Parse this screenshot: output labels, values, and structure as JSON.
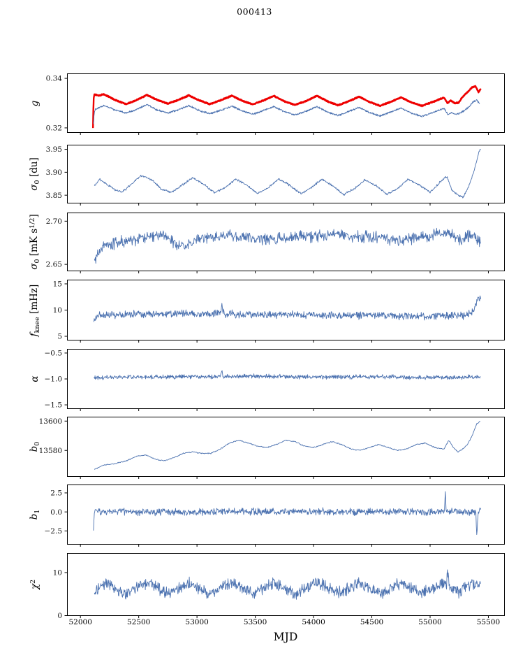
{
  "chart_data": {
    "type": "line",
    "title": "000413",
    "xlabel": "MJD",
    "xlim": [
      51885,
      55635
    ],
    "grid": false,
    "legend": "none",
    "x_ticks": {
      "values": [
        52000,
        52500,
        53000,
        53500,
        54000,
        54500,
        55000,
        55500
      ],
      "labels": [
        "52000",
        "52500",
        "53000",
        "53500",
        "54000",
        "54500",
        "55000",
        "55500"
      ]
    },
    "panels": [
      {
        "name": "g",
        "ylabel_parts": [
          [
            "i",
            "g"
          ]
        ],
        "ylim": [
          0.318,
          0.342
        ],
        "yticks": {
          "values": [
            0.32,
            0.34
          ],
          "labels": [
            "0.32",
            "0.34"
          ]
        },
        "series": [
          {
            "name": "g_thick_red",
            "color": "#ee0000",
            "width": 2.4,
            "noise": 0.00028,
            "samples": 2200,
            "x": [
              52108,
              52110,
              52114,
              52120,
              52160,
              52200,
              52300,
              52390,
              52480,
              52570,
              52660,
              52750,
              52840,
              52930,
              53020,
              53110,
              53210,
              53300,
              53390,
              53480,
              53570,
              53660,
              53750,
              53840,
              53940,
              54030,
              54120,
              54210,
              54300,
              54390,
              54480,
              54570,
              54660,
              54750,
              54840,
              54930,
              55030,
              55120,
              55150,
              55175,
              55210,
              55245,
              55280,
              55320,
              55360,
              55390,
              55415,
              55435
            ],
            "y": [
              0.32,
              0.326,
              0.332,
              0.3335,
              0.333,
              0.3336,
              0.3312,
              0.3296,
              0.3312,
              0.3333,
              0.3313,
              0.3298,
              0.3313,
              0.3331,
              0.3311,
              0.3296,
              0.3313,
              0.333,
              0.3309,
              0.3295,
              0.3311,
              0.3329,
              0.3307,
              0.3293,
              0.3309,
              0.333,
              0.3307,
              0.3291,
              0.3307,
              0.3326,
              0.3305,
              0.3289,
              0.3305,
              0.3323,
              0.3303,
              0.3289,
              0.3306,
              0.3323,
              0.3299,
              0.3311,
              0.33,
              0.3302,
              0.3326,
              0.3344,
              0.3364,
              0.3368,
              0.3345,
              0.3357
            ]
          },
          {
            "name": "g_thin_blue",
            "color": "#4c72b0",
            "width": 0.9,
            "noise": 0.00045,
            "samples": 1500,
            "x": [
              52112,
              52118,
              52126,
              52200,
              52300,
              52390,
              52480,
              52570,
              52660,
              52750,
              52840,
              52930,
              53020,
              53110,
              53210,
              53300,
              53390,
              53480,
              53570,
              53660,
              53750,
              53840,
              53940,
              54030,
              54120,
              54210,
              54300,
              54390,
              54480,
              54570,
              54660,
              54750,
              54840,
              54930,
              55030,
              55120,
              55155,
              55185,
              55215,
              55250,
              55290,
              55330,
              55370,
              55400,
              55425
            ],
            "y": [
              0.3212,
              0.3256,
              0.3274,
              0.329,
              0.3272,
              0.3261,
              0.3274,
              0.3294,
              0.3272,
              0.326,
              0.3273,
              0.329,
              0.327,
              0.3257,
              0.3272,
              0.3288,
              0.3268,
              0.3255,
              0.327,
              0.3286,
              0.3266,
              0.3252,
              0.3268,
              0.3286,
              0.3264,
              0.325,
              0.3266,
              0.3283,
              0.3262,
              0.3248,
              0.3264,
              0.328,
              0.326,
              0.3246,
              0.3263,
              0.3279,
              0.3253,
              0.3262,
              0.3255,
              0.3258,
              0.327,
              0.3284,
              0.3305,
              0.3312,
              0.3298
            ]
          }
        ]
      },
      {
        "name": "sigma0-du",
        "ylabel_parts": [
          [
            "i",
            "σ"
          ],
          [
            "sub",
            "0"
          ],
          [
            "n",
            " [du]"
          ]
        ],
        "ylim": [
          3.832,
          3.96
        ],
        "yticks": {
          "values": [
            3.85,
            3.9,
            3.95
          ],
          "labels": [
            "3.85",
            "3.90",
            "3.95"
          ]
        },
        "series": [
          {
            "name": "sigma0_du",
            "color": "#4c72b0",
            "width": 0.9,
            "noise": 0.0028,
            "samples": 900,
            "x": [
              52120,
              52165,
              52230,
              52300,
              52360,
              52430,
              52520,
              52610,
              52700,
              52780,
              52880,
              52960,
              53060,
              53150,
              53250,
              53330,
              53430,
              53520,
              53620,
              53700,
              53800,
              53890,
              53990,
              54070,
              54170,
              54260,
              54360,
              54440,
              54540,
              54630,
              54730,
              54810,
              54910,
              55000,
              55090,
              55145,
              55185,
              55235,
              55285,
              55330,
              55380,
              55420,
              55435
            ],
            "y": [
              3.87,
              3.885,
              3.873,
              3.861,
              3.857,
              3.872,
              3.893,
              3.884,
              3.862,
              3.856,
              3.873,
              3.888,
              3.874,
              3.855,
              3.868,
              3.885,
              3.872,
              3.854,
              3.868,
              3.886,
              3.871,
              3.853,
              3.868,
              3.885,
              3.87,
              3.851,
              3.866,
              3.884,
              3.87,
              3.852,
              3.866,
              3.885,
              3.872,
              3.856,
              3.88,
              3.891,
              3.861,
              3.851,
              3.846,
              3.868,
              3.905,
              3.946,
              3.951
            ]
          }
        ]
      },
      {
        "name": "sigma0-mks12",
        "ylabel_parts": [
          [
            "i",
            "σ"
          ],
          [
            "sub",
            "0"
          ],
          [
            "n",
            " [mK s"
          ],
          [
            "sup",
            "1/2"
          ],
          [
            "n",
            "]"
          ]
        ],
        "ylim": [
          2.642,
          2.71
        ],
        "yticks": {
          "values": [
            2.65,
            2.7
          ],
          "labels": [
            "2.65",
            "2.70"
          ]
        },
        "series": [
          {
            "name": "sigma0_mks",
            "color": "#4c72b0",
            "width": 0.9,
            "noise": 0.0085,
            "samples": 850,
            "x": [
              52120,
              52200,
              52400,
              52700,
              52900,
              53000,
              53300,
              53600,
              53900,
              54200,
              54500,
              54800,
              55000,
              55150,
              55250,
              55350,
              55435
            ],
            "y": [
              2.656,
              2.673,
              2.677,
              2.684,
              2.669,
              2.681,
              2.683,
              2.678,
              2.682,
              2.684,
              2.681,
              2.678,
              2.682,
              2.69,
              2.678,
              2.684,
              2.676
            ]
          }
        ]
      },
      {
        "name": "fknee",
        "ylabel_parts": [
          [
            "i",
            "f"
          ],
          [
            "sub",
            "knee"
          ],
          [
            "n",
            " [mHz]"
          ]
        ],
        "ylim": [
          4.2,
          15.8
        ],
        "yticks": {
          "values": [
            5,
            10,
            15
          ],
          "labels": [
            "5",
            "10",
            "15"
          ]
        },
        "series": [
          {
            "name": "fknee",
            "color": "#4c72b0",
            "width": 0.9,
            "noise": 0.85,
            "samples": 950,
            "x": [
              52115,
              52150,
              52500,
              53000,
              53195,
              53215,
              53235,
              53500,
              54000,
              54500,
              55000,
              55150,
              55300,
              55370,
              55410,
              55435
            ],
            "y": [
              7.8,
              9.0,
              9.2,
              9.3,
              9.3,
              10.8,
              9.3,
              9.2,
              9.0,
              9.0,
              8.8,
              9.0,
              8.8,
              9.8,
              12.4,
              11.8
            ]
          }
        ]
      },
      {
        "name": "alpha",
        "ylabel_parts": [
          [
            "i",
            "α"
          ]
        ],
        "ylim": [
          -1.58,
          -0.42
        ],
        "yticks": {
          "values": [
            -1.5,
            -1.0,
            -0.5
          ],
          "labels": [
            "−1.5",
            "−1.0",
            "−0.5"
          ]
        },
        "series": [
          {
            "name": "alpha",
            "color": "#4c72b0",
            "width": 0.9,
            "noise": 0.05,
            "samples": 950,
            "x": [
              52115,
              52500,
              53000,
              53200,
              53212,
              53224,
              53500,
              54000,
              54500,
              55000,
              55430
            ],
            "y": [
              -0.98,
              -0.96,
              -0.96,
              -0.95,
              -0.82,
              -0.95,
              -0.95,
              -0.96,
              -0.96,
              -0.97,
              -0.96
            ]
          }
        ]
      },
      {
        "name": "b0",
        "ylabel_parts": [
          [
            "i",
            "b"
          ],
          [
            "sub",
            "0"
          ]
        ],
        "ylim": [
          13562,
          13603
        ],
        "yticks": {
          "values": [
            13580,
            13600
          ],
          "labels": [
            "13580",
            "13600"
          ]
        },
        "series": [
          {
            "name": "b0",
            "color": "#4c72b0",
            "width": 0.9,
            "noise": 0.45,
            "samples": 700,
            "x": [
              52120,
              52200,
              52300,
              52400,
              52480,
              52560,
              52640,
              52720,
              52800,
              52880,
              52960,
              53040,
              53120,
              53200,
              53280,
              53360,
              53440,
              53520,
              53600,
              53680,
              53760,
              53840,
              53920,
              54000,
              54080,
              54160,
              54240,
              54320,
              54400,
              54480,
              54560,
              54640,
              54720,
              54800,
              54880,
              54960,
              55040,
              55120,
              55160,
              55200,
              55240,
              55280,
              55320,
              55360,
              55400,
              55430
            ],
            "y": [
              13567,
              13570,
              13571,
              13573,
              13576,
              13577,
              13574,
              13573,
              13575,
              13578,
              13579,
              13578,
              13578,
              13581,
              13585,
              13587,
              13585,
              13583,
              13582,
              13584,
              13587,
              13586,
              13583,
              13582,
              13584,
              13586,
              13584,
              13581,
              13580,
              13582,
              13584,
              13582,
              13580,
              13581,
              13584,
              13585,
              13582,
              13581,
              13587,
              13582,
              13579,
              13581,
              13584,
              13590,
              13598,
              13600
            ]
          }
        ]
      },
      {
        "name": "b1",
        "ylabel_parts": [
          [
            "i",
            "b"
          ],
          [
            "sub",
            "1"
          ]
        ],
        "ylim": [
          -4.3,
          3.6
        ],
        "yticks": {
          "values": [
            -2.5,
            0.0,
            2.5
          ],
          "labels": [
            "−2.5",
            "0.0",
            "2.5"
          ]
        },
        "series": [
          {
            "name": "b1",
            "color": "#4c72b0",
            "width": 0.9,
            "noise": 0.55,
            "samples": 950,
            "x": [
              52112,
              52116,
              52122,
              52300,
              53000,
              54000,
              55000,
              55100,
              55124,
              55131,
              55138,
              55200,
              55300,
              55393,
              55401,
              55409,
              55435
            ],
            "y": [
              -2.6,
              -0.8,
              0.1,
              0.0,
              0.0,
              0.05,
              0.0,
              0.1,
              0.2,
              3.1,
              0.1,
              0.0,
              0.0,
              0.0,
              -3.3,
              -0.2,
              0.3
            ]
          }
        ]
      },
      {
        "name": "chi2",
        "ylabel_parts": [
          [
            "i",
            "χ"
          ],
          [
            "sup",
            "2"
          ]
        ],
        "ylim": [
          0,
          14.5
        ],
        "yticks": {
          "values": [
            0,
            10
          ],
          "labels": [
            "0",
            "10"
          ]
        },
        "series": [
          {
            "name": "chi2",
            "color": "#4c72b0",
            "width": 0.9,
            "noise": 1.6,
            "samples": 950,
            "x": [
              52120,
              52200,
              52390,
              52570,
              52750,
              52930,
              53110,
              53300,
              53480,
              53660,
              53840,
              54030,
              54210,
              54390,
              54570,
              54750,
              54930,
              55120,
              55140,
              55152,
              55164,
              55250,
              55350,
              55435
            ],
            "y": [
              5.4,
              7.6,
              5.1,
              7.8,
              5.2,
              7.6,
              5.0,
              7.9,
              5.2,
              7.6,
              5.0,
              7.9,
              5.2,
              7.6,
              5.0,
              7.8,
              5.2,
              7.6,
              7.0,
              10.3,
              6.8,
              5.4,
              7.4,
              7.0
            ]
          }
        ]
      }
    ]
  }
}
